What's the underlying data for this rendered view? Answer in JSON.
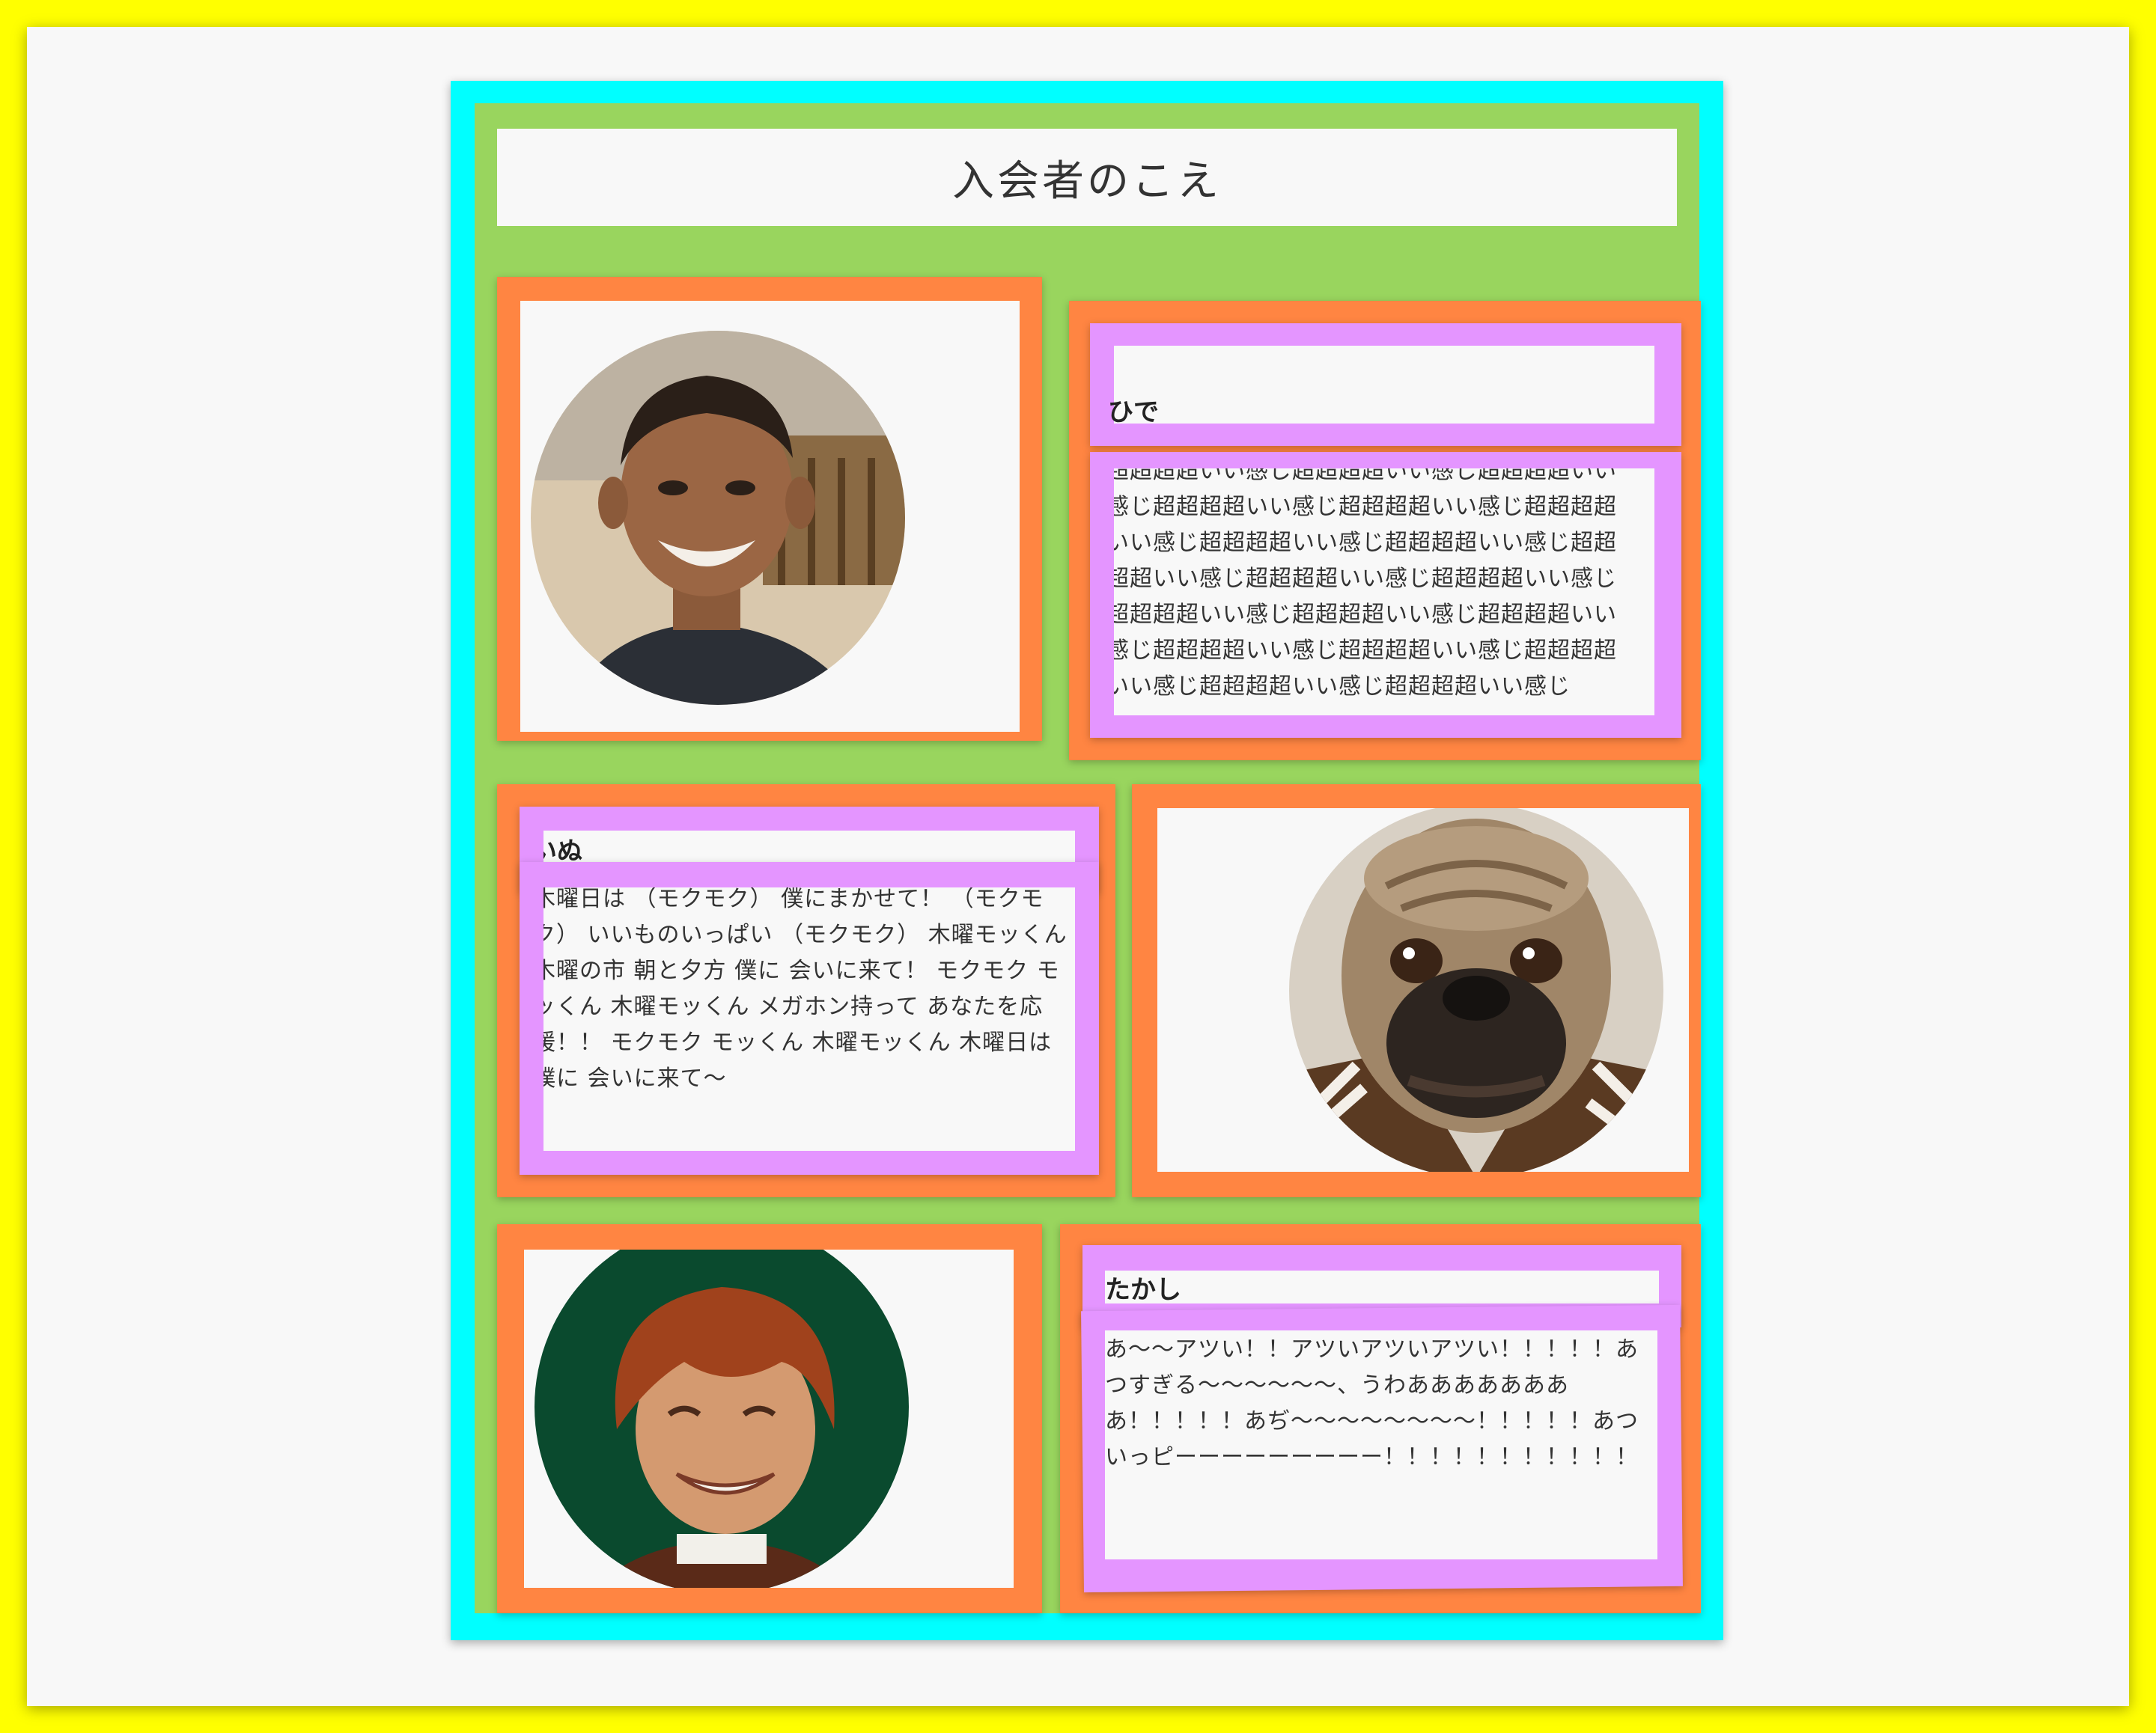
{
  "section": {
    "title": "入会者のこえ"
  },
  "members": [
    {
      "name": "ひで",
      "comment": "超超超超いい感じ超超超超いい感じ超超超超いい感じ超超超超いい感じ超超超超いい感じ超超超超いい感じ超超超超いい感じ超超超超いい感じ超超超超いい感じ超超超超いい感じ超超超超いい感じ超超超超いい感じ超超超超いい感じ超超超超いい感じ超超超超いい感じ超超超超いい感じ超超超超いい感じ超超超超いい感じ超超超超いい感じ"
    },
    {
      "name": "いぬ",
      "comment": "木曜日は （モクモク） 僕にまかせて！ （モクモク） いいものいっぱい （モクモク） 木曜モッくん 木曜の市 朝と夕方 僕に 会いに来て！ モクモク モッくん 木曜モッくん メガホン持って あなたを応援！！ モクモク モッくん 木曜モッくん 木曜日は 僕に 会いに来て〜"
    },
    {
      "name": "たかし",
      "comment": "あ〜〜アツい！！アツいアツいアツい！！！！！あつすぎる〜〜〜〜〜〜、うわああああああああ！！！！！あぢ〜〜〜〜〜〜〜〜！！！！！あついっピーーーーーーーーー！！！！！！！！！！！"
    }
  ],
  "colors": {
    "outer_border": "#ffff00",
    "frame": "#00ffff",
    "section_bg": "#99d55e",
    "card": "#ff8542",
    "text_box": "#e495ff",
    "panel": "#f8f8f8"
  }
}
